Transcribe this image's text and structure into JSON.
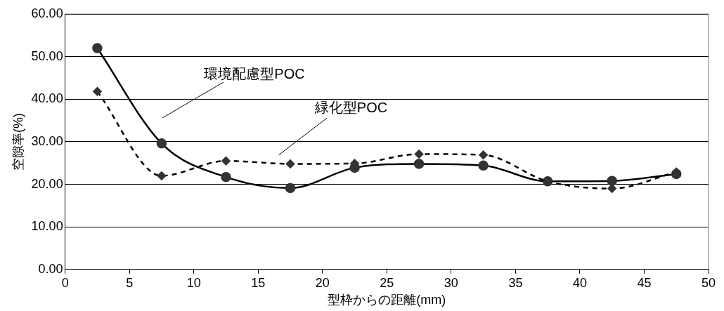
{
  "chart_data": {
    "type": "line",
    "xlabel": "型枠からの距離(mm)",
    "ylabel": "空隙率(%)",
    "x": [
      2.5,
      7.5,
      12.5,
      17.5,
      22.5,
      27.5,
      32.5,
      37.5,
      42.5,
      47.5
    ],
    "series": [
      {
        "color": "#333333",
        "marker": "circle",
        "line_style": "solid",
        "values": [
          52.0,
          29.6,
          21.7,
          19.1,
          23.9,
          24.8,
          24.4,
          20.7,
          20.8,
          22.4
        ]
      },
      {
        "color": "#333333",
        "marker": "diamond",
        "line_style": "dashed",
        "values": [
          41.8,
          22.0,
          25.5,
          24.8,
          24.9,
          27.1,
          26.9,
          20.7,
          19.0,
          22.9
        ]
      }
    ],
    "xlim": [
      0,
      50
    ],
    "xticks": [
      0,
      5,
      10,
      15,
      20,
      25,
      30,
      35,
      40,
      45,
      50
    ],
    "ylim": [
      0,
      60
    ],
    "yticks": [
      {
        "value": 0,
        "label": "0.00"
      },
      {
        "value": 10,
        "label": "10.00"
      },
      {
        "value": 20,
        "label": "20.00"
      },
      {
        "value": 30,
        "label": "30.00"
      },
      {
        "value": 40,
        "label": "40.00"
      },
      {
        "value": 50,
        "label": "50.00"
      },
      {
        "value": 60,
        "label": "60.00"
      }
    ],
    "grid": "y",
    "legend": false,
    "annotations": [
      "環境配慮型POC",
      "緑化型POC"
    ]
  }
}
